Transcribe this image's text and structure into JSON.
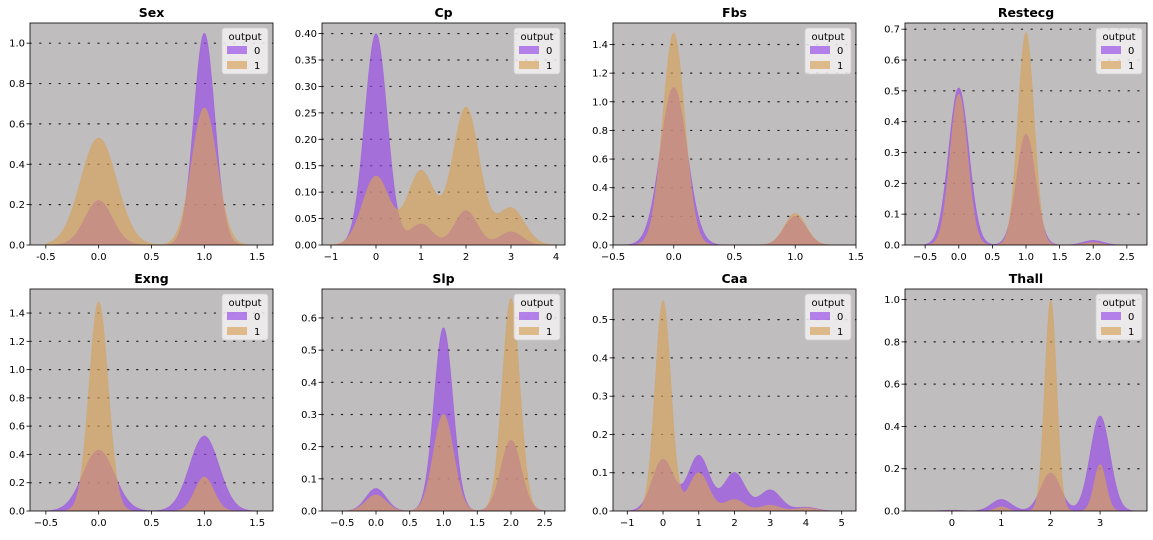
{
  "colors": {
    "background": "#bfbdbd",
    "class0": "#9748e6",
    "class1": "#d7a15a",
    "grid_dots": "#222222"
  },
  "legend": {
    "title": "output",
    "labels": [
      "0",
      "1"
    ]
  },
  "chart_data": [
    {
      "type": "area",
      "title": "Sex",
      "xlim": [
        -0.65,
        1.65
      ],
      "ylim": [
        0,
        1.1
      ],
      "xticks": [
        -0.5,
        0.0,
        0.5,
        1.0,
        1.5
      ],
      "xticklabels": [
        "-0.5",
        "0.0",
        "0.5",
        "1.0",
        "1.5"
      ],
      "yticks": [
        0,
        0.2,
        0.4,
        0.6,
        0.8,
        1.0
      ],
      "yticklabels": [
        "0.0",
        "0.2",
        "0.4",
        "0.6",
        "0.8",
        "1.0"
      ],
      "xrange": [
        -0.5,
        1.5
      ],
      "legend_position": "upper-right",
      "grid": "dotted horizontal",
      "series": [
        {
          "name": "0",
          "peaks": [
            [
              0,
              0.22,
              0.13
            ],
            [
              1,
              1.05,
              0.1
            ]
          ]
        },
        {
          "name": "1",
          "peaks": [
            [
              0,
              0.53,
              0.17
            ],
            [
              1,
              0.68,
              0.12
            ]
          ]
        }
      ]
    },
    {
      "type": "area",
      "title": "Cp",
      "xlim": [
        -1.2,
        4.2
      ],
      "ylim": [
        0,
        0.42
      ],
      "xticks": [
        -1,
        0,
        1,
        2,
        3,
        4
      ],
      "xticklabels": [
        "−1",
        "0",
        "1",
        "2",
        "3",
        "4"
      ],
      "yticks": [
        0,
        0.05,
        0.1,
        0.15,
        0.2,
        0.25,
        0.3,
        0.35,
        0.4
      ],
      "yticklabels": [
        "0.00",
        "0.05",
        "0.10",
        "0.15",
        "0.20",
        "0.25",
        "0.30",
        "0.35",
        "0.40"
      ],
      "xrange": [
        -1.0,
        4.0
      ],
      "legend_position": "upper-right",
      "grid": "dotted horizontal",
      "series": [
        {
          "name": "0",
          "peaks": [
            [
              0,
              0.4,
              0.25
            ],
            [
              1,
              0.04,
              0.25
            ],
            [
              2,
              0.065,
              0.25
            ],
            [
              3,
              0.025,
              0.25
            ]
          ]
        },
        {
          "name": "1",
          "peaks": [
            [
              0,
              0.13,
              0.3
            ],
            [
              1,
              0.14,
              0.3
            ],
            [
              2,
              0.26,
              0.3
            ],
            [
              3,
              0.07,
              0.3
            ]
          ]
        }
      ]
    },
    {
      "type": "area",
      "title": "Fbs",
      "xlim": [
        -0.5,
        1.5
      ],
      "ylim": [
        0,
        1.55
      ],
      "xticks": [
        -0.5,
        0.0,
        0.5,
        1.0,
        1.5
      ],
      "xticklabels": [
        "−0.5",
        "0.0",
        "0.5",
        "1.0",
        "1.5"
      ],
      "yticks": [
        0,
        0.2,
        0.4,
        0.6,
        0.8,
        1.0,
        1.2,
        1.4
      ],
      "yticklabels": [
        "0.0",
        "0.2",
        "0.4",
        "0.6",
        "0.8",
        "1.0",
        "1.2",
        "1.4"
      ],
      "xrange": [
        -0.5,
        1.5
      ],
      "legend_position": "upper-right",
      "grid": "dotted horizontal",
      "series": [
        {
          "name": "0",
          "peaks": [
            [
              0,
              1.1,
              0.11
            ],
            [
              1,
              0.2,
              0.09
            ]
          ]
        },
        {
          "name": "1",
          "peaks": [
            [
              0,
              1.48,
              0.09
            ],
            [
              1,
              0.22,
              0.09
            ]
          ]
        }
      ]
    },
    {
      "type": "area",
      "title": "Restecg",
      "xlim": [
        -0.8,
        2.8
      ],
      "ylim": [
        0,
        0.72
      ],
      "xticks": [
        -0.5,
        0.0,
        0.5,
        1.0,
        1.5,
        2.0,
        2.5
      ],
      "xticklabels": [
        "−0.5",
        "0.0",
        "0.5",
        "1.0",
        "1.5",
        "2.0",
        "2.5"
      ],
      "yticks": [
        0,
        0.1,
        0.2,
        0.3,
        0.4,
        0.5,
        0.6,
        0.7
      ],
      "yticklabels": [
        "0.0",
        "0.1",
        "0.2",
        "0.3",
        "0.4",
        "0.5",
        "0.6",
        "0.7"
      ],
      "xrange": [
        -0.8,
        2.8
      ],
      "legend_position": "upper-right",
      "grid": "dotted horizontal",
      "series": [
        {
          "name": "0",
          "peaks": [
            [
              0,
              0.51,
              0.15
            ],
            [
              1,
              0.36,
              0.14
            ],
            [
              2,
              0.015,
              0.15
            ]
          ]
        },
        {
          "name": "1",
          "peaks": [
            [
              0,
              0.49,
              0.13
            ],
            [
              1,
              0.69,
              0.12
            ],
            [
              2,
              0.008,
              0.13
            ]
          ]
        }
      ]
    },
    {
      "type": "area",
      "title": "Exng",
      "xlim": [
        -0.65,
        1.65
      ],
      "ylim": [
        0,
        1.57
      ],
      "xticks": [
        -0.5,
        0.0,
        0.5,
        1.0,
        1.5
      ],
      "xticklabels": [
        "−0.5",
        "0.0",
        "0.5",
        "1.0",
        "1.5"
      ],
      "yticks": [
        0,
        0.2,
        0.4,
        0.6,
        0.8,
        1.0,
        1.2,
        1.4
      ],
      "yticklabels": [
        "0.0",
        "0.2",
        "0.4",
        "0.6",
        "0.8",
        "1.0",
        "1.2",
        "1.4"
      ],
      "xrange": [
        -0.5,
        1.5
      ],
      "legend_position": "upper-right",
      "grid": "dotted horizontal",
      "series": [
        {
          "name": "0",
          "peaks": [
            [
              0,
              0.43,
              0.15
            ],
            [
              1,
              0.53,
              0.14
            ]
          ]
        },
        {
          "name": "1",
          "peaks": [
            [
              0,
              1.48,
              0.09
            ],
            [
              1,
              0.24,
              0.09
            ]
          ]
        }
      ]
    },
    {
      "type": "area",
      "title": "Slp",
      "xlim": [
        -0.8,
        2.8
      ],
      "ylim": [
        0,
        0.69
      ],
      "xticks": [
        -0.5,
        0.0,
        0.5,
        1.0,
        1.5,
        2.0,
        2.5
      ],
      "xticklabels": [
        "−0.5",
        "0.0",
        "0.5",
        "1.0",
        "1.5",
        "2.0",
        "2.5"
      ],
      "yticks": [
        0,
        0.1,
        0.2,
        0.3,
        0.4,
        0.5,
        0.6
      ],
      "yticklabels": [
        "0.0",
        "0.1",
        "0.2",
        "0.3",
        "0.4",
        "0.5",
        "0.6"
      ],
      "xrange": [
        -0.5,
        2.5
      ],
      "legend_position": "upper-right",
      "grid": "dotted horizontal",
      "series": [
        {
          "name": "0",
          "peaks": [
            [
              0,
              0.07,
              0.15
            ],
            [
              1,
              0.57,
              0.14
            ],
            [
              2,
              0.22,
              0.15
            ]
          ]
        },
        {
          "name": "1",
          "peaks": [
            [
              0,
              0.05,
              0.15
            ],
            [
              1,
              0.3,
              0.15
            ],
            [
              2,
              0.66,
              0.13
            ]
          ]
        }
      ]
    },
    {
      "type": "area",
      "title": "Caa",
      "xlim": [
        -1.4,
        5.4
      ],
      "ylim": [
        0,
        0.58
      ],
      "xticks": [
        -1,
        0,
        1,
        2,
        3,
        4,
        5
      ],
      "xticklabels": [
        "−1",
        "0",
        "1",
        "2",
        "3",
        "4",
        "5"
      ],
      "yticks": [
        0,
        0.1,
        0.2,
        0.3,
        0.4,
        0.5
      ],
      "yticklabels": [
        "0.0",
        "0.1",
        "0.2",
        "0.3",
        "0.4",
        "0.5"
      ],
      "xrange": [
        -1.0,
        5.0
      ],
      "legend_position": "upper-right",
      "grid": "dotted horizontal",
      "series": [
        {
          "name": "0",
          "peaks": [
            [
              0,
              0.135,
              0.3
            ],
            [
              1,
              0.145,
              0.3
            ],
            [
              2,
              0.1,
              0.3
            ],
            [
              3,
              0.055,
              0.3
            ],
            [
              4,
              0.01,
              0.3
            ]
          ]
        },
        {
          "name": "1",
          "peaks": [
            [
              0,
              0.55,
              0.22
            ],
            [
              1,
              0.1,
              0.28
            ],
            [
              2,
              0.03,
              0.28
            ],
            [
              3,
              0.015,
              0.28
            ],
            [
              4,
              0.008,
              0.28
            ]
          ]
        }
      ]
    },
    {
      "type": "area",
      "title": "Thall",
      "xlim": [
        -0.95,
        3.95
      ],
      "ylim": [
        0,
        1.05
      ],
      "xticks": [
        0,
        1,
        2,
        3
      ],
      "xticklabels": [
        "0",
        "1",
        "2",
        "3"
      ],
      "yticks": [
        0,
        0.2,
        0.4,
        0.6,
        0.8,
        1.0
      ],
      "yticklabels": [
        "0.0",
        "0.2",
        "0.4",
        "0.6",
        "0.8",
        "1.0"
      ],
      "xrange": [
        -0.8,
        3.95
      ],
      "legend_position": "upper-right",
      "grid": "dotted horizontal",
      "series": [
        {
          "name": "0",
          "peaks": [
            [
              0,
              0.004,
              0.2
            ],
            [
              1,
              0.055,
              0.2
            ],
            [
              2,
              0.18,
              0.2
            ],
            [
              3,
              0.45,
              0.2
            ]
          ]
        },
        {
          "name": "1",
          "peaks": [
            [
              0,
              0.002,
              0.12
            ],
            [
              1,
              0.02,
              0.12
            ],
            [
              2,
              1.0,
              0.12
            ],
            [
              3,
              0.22,
              0.12
            ]
          ]
        }
      ]
    }
  ]
}
